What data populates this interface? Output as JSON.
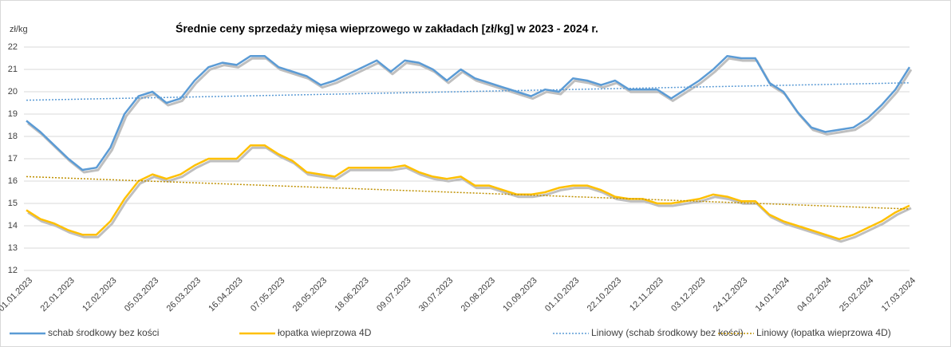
{
  "chart_data": {
    "type": "line",
    "title": "Średnie ceny sprzedaży mięsa wieprzowego w zakładach [zł/kg] w 2023 - 2024 r.",
    "y_label": "zł/kg",
    "categories": [
      "01.01.2023",
      null,
      null,
      "22.01.2023",
      null,
      null,
      "12.02.2023",
      null,
      null,
      "05.03.2023",
      null,
      null,
      "26.03.2023",
      null,
      null,
      "16.04.2023",
      null,
      null,
      "07.05.2023",
      null,
      null,
      "28.05.2023",
      null,
      null,
      "18.06.2023",
      null,
      null,
      "09.07.2023",
      null,
      null,
      "30.07.2023",
      null,
      null,
      "20.08.2023",
      null,
      null,
      "10.09.2023",
      null,
      null,
      "01.10.2023",
      null,
      null,
      "22.10.2023",
      null,
      null,
      "12.11.2023",
      null,
      null,
      "03.12.2023",
      null,
      null,
      "24.12.2023",
      null,
      null,
      "14.01.2024",
      null,
      null,
      "04.02.2024",
      null,
      null,
      "25.02.2024",
      null,
      null,
      "17.03.2024"
    ],
    "series": [
      {
        "name": "schab środkowy bez kości",
        "color": "#5b9bd5",
        "values": [
          18.7,
          18.2,
          17.6,
          17.0,
          16.5,
          16.6,
          17.5,
          19.0,
          19.8,
          20.0,
          19.5,
          19.7,
          20.5,
          21.1,
          21.3,
          21.2,
          21.6,
          21.6,
          21.1,
          20.9,
          20.7,
          20.3,
          20.5,
          20.8,
          21.1,
          21.4,
          20.9,
          21.4,
          21.3,
          21.0,
          20.5,
          21.0,
          20.6,
          20.4,
          20.2,
          20.0,
          19.8,
          20.1,
          20.0,
          20.6,
          20.5,
          20.3,
          20.5,
          20.1,
          20.1,
          20.1,
          19.7,
          20.1,
          20.5,
          21.0,
          21.6,
          21.5,
          21.5,
          20.4,
          20.0,
          19.1,
          18.4,
          18.2,
          18.3,
          18.4,
          18.8,
          19.4,
          20.1,
          21.1
        ]
      },
      {
        "name": "łopatka wieprzowa 4D",
        "color": "#ffc000",
        "values": [
          14.7,
          14.3,
          14.1,
          13.8,
          13.6,
          13.6,
          14.2,
          15.2,
          16.0,
          16.3,
          16.1,
          16.3,
          16.7,
          17.0,
          17.0,
          17.0,
          17.6,
          17.6,
          17.2,
          16.9,
          16.4,
          16.3,
          16.2,
          16.6,
          16.6,
          16.6,
          16.6,
          16.7,
          16.4,
          16.2,
          16.1,
          16.2,
          15.8,
          15.8,
          15.6,
          15.4,
          15.4,
          15.5,
          15.7,
          15.8,
          15.8,
          15.6,
          15.3,
          15.2,
          15.2,
          15.0,
          15.0,
          15.1,
          15.2,
          15.4,
          15.3,
          15.1,
          15.1,
          14.5,
          14.2,
          14.0,
          13.8,
          13.6,
          13.4,
          13.6,
          13.9,
          14.2,
          14.6,
          14.9
        ]
      },
      {
        "name": "Liniowy (schab środkowy bez kości)",
        "color": "#5b9bd5",
        "dotted": true,
        "start": 19.62,
        "end": 20.4
      },
      {
        "name": "Liniowy (łopatka wieprzowa 4D)",
        "color": "#bf9000",
        "dotted": true,
        "start": 16.2,
        "end": 14.75
      }
    ],
    "ylim": [
      12,
      22
    ],
    "yticks": [
      12,
      13,
      14,
      15,
      16,
      17,
      18,
      19,
      20,
      21,
      22
    ],
    "grid": true,
    "legend": "bottom"
  }
}
